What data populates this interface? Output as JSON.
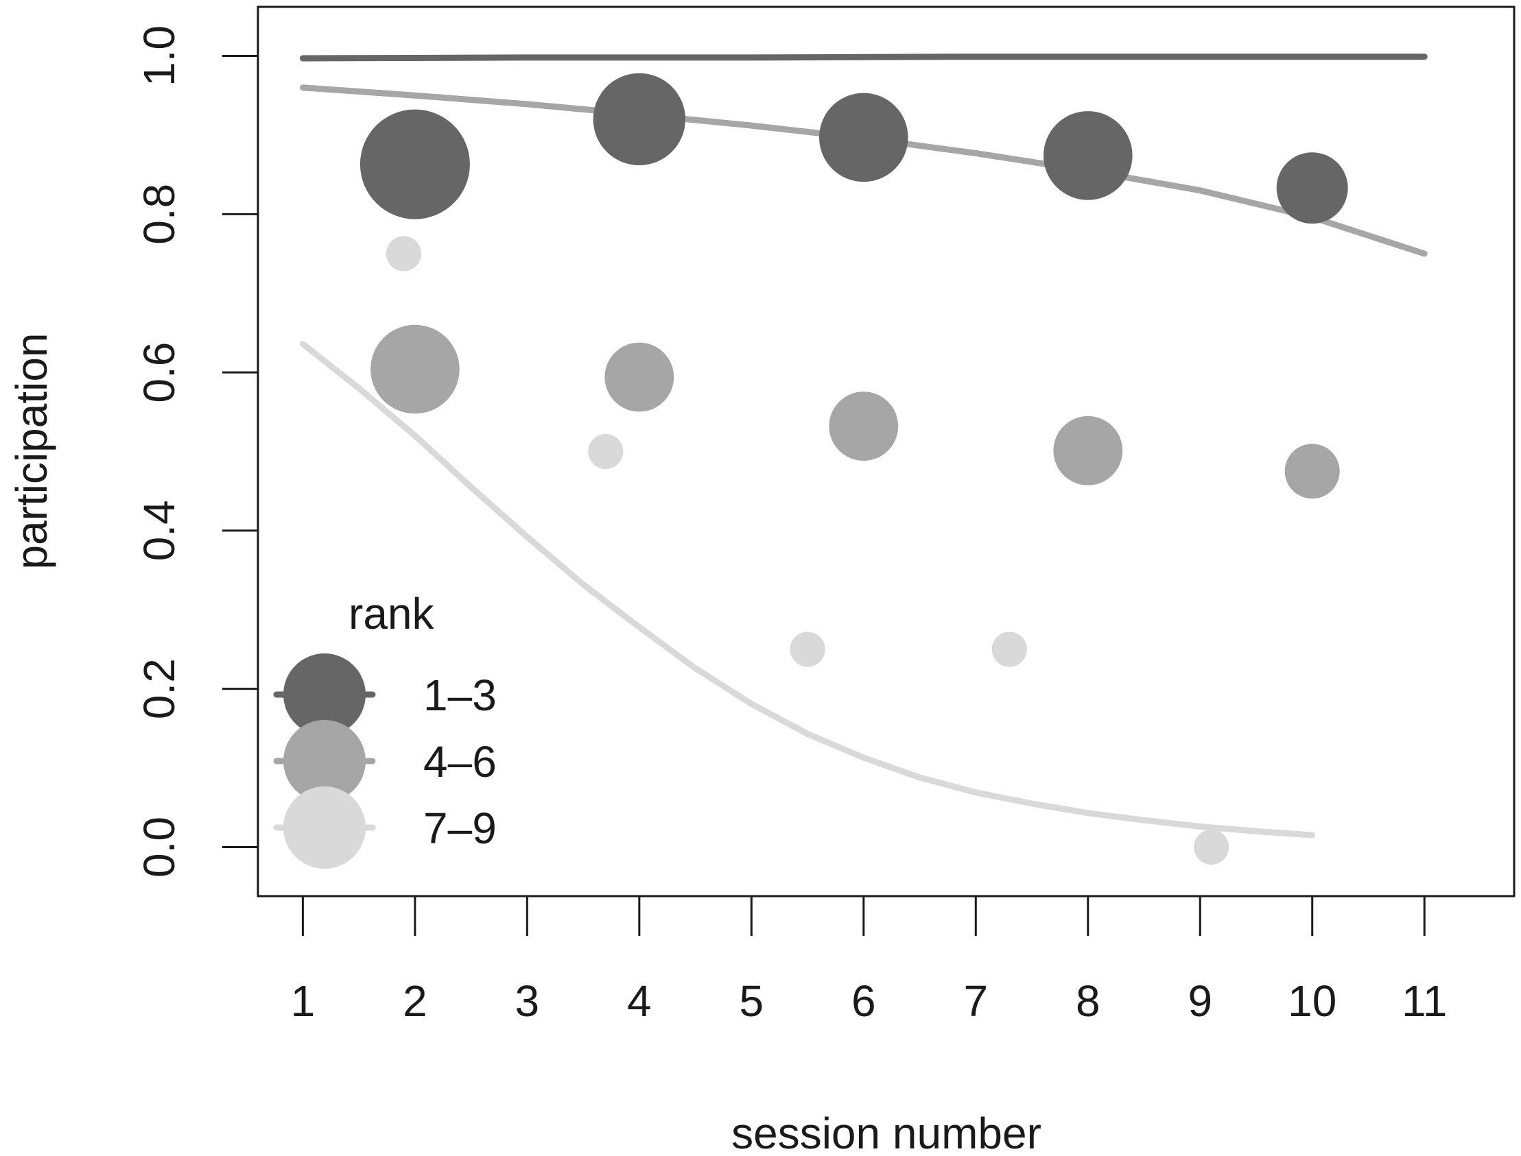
{
  "chart_data": {
    "type": "scatter",
    "title": "",
    "xlabel": "session number",
    "ylabel": "participation",
    "xlim": [
      0.6,
      11.8
    ],
    "ylim": [
      -0.062,
      1.062
    ],
    "x_ticks": [
      1,
      2,
      3,
      4,
      5,
      6,
      7,
      8,
      9,
      10,
      11
    ],
    "x_tick_labels": [
      "1",
      "2",
      "3",
      "4",
      "5",
      "6",
      "7",
      "8",
      "9",
      "10",
      "11"
    ],
    "y_ticks": [
      0.0,
      0.2,
      0.4,
      0.6,
      0.8,
      1.0
    ],
    "y_tick_labels": [
      "0.0",
      "0.2",
      "0.4",
      "0.6",
      "0.8",
      "1.0"
    ],
    "grid": false,
    "legend": {
      "title": "rank",
      "position": "bottom-left",
      "entries": [
        "1–3",
        "4–6",
        "7–9"
      ]
    },
    "series": [
      {
        "name": "1–3",
        "color": "#666666",
        "points": [
          {
            "x": 2,
            "y": 0.863,
            "size": 1.0
          },
          {
            "x": 4,
            "y": 0.92,
            "size": 0.84
          },
          {
            "x": 6,
            "y": 0.897,
            "size": 0.81
          },
          {
            "x": 8,
            "y": 0.874,
            "size": 0.81
          },
          {
            "x": 10,
            "y": 0.833,
            "size": 0.65
          }
        ],
        "fit": [
          [
            1,
            0.997
          ],
          [
            3,
            0.998
          ],
          [
            5,
            0.998
          ],
          [
            7,
            0.999
          ],
          [
            9,
            0.999
          ],
          [
            11,
            0.999
          ]
        ]
      },
      {
        "name": "4–6",
        "color": "#a6a6a6",
        "points": [
          {
            "x": 2,
            "y": 0.604,
            "size": 0.81
          },
          {
            "x": 4,
            "y": 0.594,
            "size": 0.63
          },
          {
            "x": 6,
            "y": 0.532,
            "size": 0.63
          },
          {
            "x": 8,
            "y": 0.501,
            "size": 0.63
          },
          {
            "x": 10,
            "y": 0.475,
            "size": 0.5
          }
        ],
        "fit": [
          [
            1,
            0.96
          ],
          [
            2,
            0.95
          ],
          [
            3,
            0.939
          ],
          [
            4,
            0.926
          ],
          [
            5,
            0.912
          ],
          [
            6,
            0.896
          ],
          [
            7,
            0.877
          ],
          [
            8,
            0.855
          ],
          [
            9,
            0.83
          ],
          [
            10,
            0.796
          ],
          [
            11,
            0.75
          ]
        ]
      },
      {
        "name": "7–9",
        "color": "#d9d9d9",
        "points": [
          {
            "x": 1.9,
            "y": 0.75,
            "size": 0.32
          },
          {
            "x": 3.7,
            "y": 0.5,
            "size": 0.32
          },
          {
            "x": 5.5,
            "y": 0.25,
            "size": 0.32
          },
          {
            "x": 7.3,
            "y": 0.25,
            "size": 0.32
          },
          {
            "x": 9.1,
            "y": 0.0,
            "size": 0.32
          }
        ],
        "fit": [
          [
            1,
            0.636
          ],
          [
            1.5,
            0.58
          ],
          [
            2,
            0.52
          ],
          [
            2.5,
            0.455
          ],
          [
            3,
            0.392
          ],
          [
            3.5,
            0.332
          ],
          [
            4,
            0.278
          ],
          [
            4.5,
            0.226
          ],
          [
            5,
            0.181
          ],
          [
            5.5,
            0.143
          ],
          [
            6,
            0.113
          ],
          [
            6.5,
            0.088
          ],
          [
            7,
            0.069
          ],
          [
            7.5,
            0.055
          ],
          [
            8,
            0.043
          ],
          [
            8.5,
            0.034
          ],
          [
            9,
            0.026
          ],
          [
            9.5,
            0.02
          ],
          [
            10,
            0.015
          ]
        ]
      }
    ]
  }
}
